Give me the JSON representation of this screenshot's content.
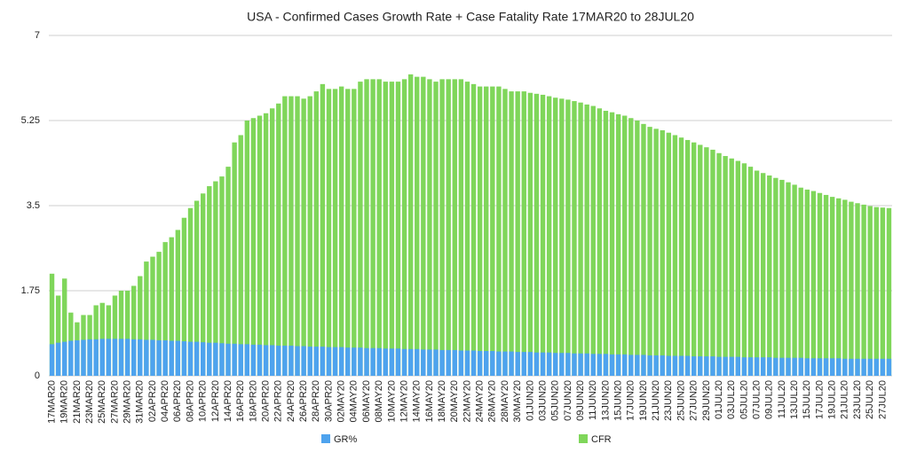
{
  "chart_data": {
    "type": "bar",
    "title": "USA - Confirmed Cases Growth Rate + Case Fatality Rate 17MAR20 to 28JUL20",
    "categories": [
      "17MAR20",
      null,
      "19MAR20",
      null,
      "21MAR20",
      null,
      "23MAR20",
      null,
      "25MAR20",
      null,
      "27MAR20",
      null,
      "29MAR20",
      null,
      "31MAR20",
      null,
      "02APR20",
      null,
      "04APR20",
      null,
      "06APR20",
      null,
      "08APR20",
      null,
      "10APR20",
      null,
      "12APR20",
      null,
      "14APR20",
      null,
      "16APR20",
      null,
      "18APR20",
      null,
      "20APR20",
      null,
      "22APR20",
      null,
      "24APR20",
      null,
      "26APR20",
      null,
      "28APR20",
      null,
      "30APR20",
      null,
      "02MAY20",
      null,
      "04MAY20",
      null,
      "06MAY20",
      null,
      "08MAY20",
      null,
      "10MAY20",
      null,
      "12MAY20",
      null,
      "14MAY20",
      null,
      "16MAY20",
      null,
      "18MAY20",
      null,
      "20MAY20",
      null,
      "22MAY20",
      null,
      "24MAY20",
      null,
      "26MAY20",
      null,
      "28MAY20",
      null,
      "30MAY20",
      null,
      "01JUN20",
      null,
      "03JUN20",
      null,
      "05JUN20",
      null,
      "07JUN20",
      null,
      "09JUN20",
      null,
      "11JUN20",
      null,
      "13JUN20",
      null,
      "15JUN20",
      null,
      "17JUN20",
      null,
      "19JUN20",
      null,
      "21JUN20",
      null,
      "23JUN20",
      null,
      "25JUN20",
      null,
      "27JUN20",
      null,
      "29JUN20",
      null,
      "01JUL20",
      null,
      "03JUL20",
      null,
      "05JUL20",
      null,
      "07JUL20",
      null,
      "09JUL20",
      null,
      "11JUL20",
      null,
      "13JUL20",
      null,
      "15JUL20",
      null,
      "17JUL20",
      null,
      "19JUL20",
      null,
      "21JUL20",
      null,
      "23JUL20",
      null,
      "25JUL20",
      null,
      "27JUL20",
      null
    ],
    "series": [
      {
        "name": "CFR",
        "color": "#7fd65a",
        "values": [
          2.1,
          1.65,
          2.0,
          1.3,
          1.1,
          1.25,
          1.25,
          1.45,
          1.5,
          1.45,
          1.65,
          1.75,
          1.75,
          1.85,
          2.05,
          2.35,
          2.45,
          2.55,
          2.75,
          2.85,
          3.0,
          3.25,
          3.45,
          3.6,
          3.75,
          3.9,
          4.0,
          4.1,
          4.3,
          4.8,
          4.95,
          5.25,
          5.3,
          5.35,
          5.4,
          5.5,
          5.6,
          5.75,
          5.75,
          5.75,
          5.7,
          5.75,
          5.85,
          6.0,
          5.9,
          5.9,
          5.95,
          5.9,
          5.9,
          6.05,
          6.1,
          6.1,
          6.1,
          6.05,
          6.05,
          6.05,
          6.1,
          6.2,
          6.15,
          6.15,
          6.1,
          6.05,
          6.1,
          6.1,
          6.1,
          6.1,
          6.05,
          6.0,
          5.95,
          5.95,
          5.95,
          5.95,
          5.9,
          5.85,
          5.85,
          5.85,
          5.82,
          5.8,
          5.78,
          5.75,
          5.72,
          5.7,
          5.68,
          5.65,
          5.62,
          5.58,
          5.55,
          5.5,
          5.45,
          5.42,
          5.38,
          5.35,
          5.3,
          5.25,
          5.18,
          5.12,
          5.08,
          5.05,
          5.0,
          4.95,
          4.9,
          4.85,
          4.8,
          4.75,
          4.7,
          4.65,
          4.58,
          4.52,
          4.47,
          4.42,
          4.37,
          4.3,
          4.22,
          4.17,
          4.12,
          4.07,
          4.03,
          3.98,
          3.93,
          3.87,
          3.83,
          3.8,
          3.76,
          3.72,
          3.68,
          3.65,
          3.62,
          3.58,
          3.55,
          3.52,
          3.49,
          3.47,
          3.46,
          3.45
        ]
      },
      {
        "name": "GR%",
        "color": "#4ea3ee",
        "values": [
          0.65,
          0.68,
          0.7,
          0.72,
          0.73,
          0.74,
          0.75,
          0.75,
          0.76,
          0.76,
          0.76,
          0.76,
          0.76,
          0.75,
          0.75,
          0.74,
          0.74,
          0.73,
          0.73,
          0.72,
          0.72,
          0.71,
          0.7,
          0.7,
          0.69,
          0.68,
          0.68,
          0.67,
          0.66,
          0.66,
          0.65,
          0.65,
          0.64,
          0.64,
          0.63,
          0.63,
          0.62,
          0.62,
          0.62,
          0.61,
          0.61,
          0.6,
          0.6,
          0.6,
          0.59,
          0.59,
          0.59,
          0.58,
          0.58,
          0.58,
          0.57,
          0.57,
          0.57,
          0.56,
          0.56,
          0.56,
          0.55,
          0.55,
          0.55,
          0.54,
          0.54,
          0.54,
          0.53,
          0.53,
          0.53,
          0.52,
          0.52,
          0.52,
          0.51,
          0.51,
          0.51,
          0.5,
          0.5,
          0.5,
          0.49,
          0.49,
          0.49,
          0.48,
          0.48,
          0.48,
          0.47,
          0.47,
          0.47,
          0.46,
          0.46,
          0.46,
          0.45,
          0.45,
          0.45,
          0.44,
          0.44,
          0.44,
          0.43,
          0.43,
          0.43,
          0.42,
          0.42,
          0.42,
          0.41,
          0.41,
          0.41,
          0.41,
          0.4,
          0.4,
          0.4,
          0.4,
          0.39,
          0.39,
          0.39,
          0.39,
          0.38,
          0.38,
          0.38,
          0.38,
          0.38,
          0.37,
          0.37,
          0.37,
          0.37,
          0.37,
          0.36,
          0.36,
          0.36,
          0.36,
          0.36,
          0.36,
          0.35,
          0.35,
          0.35,
          0.35,
          0.35,
          0.35,
          0.35,
          0.35
        ]
      }
    ],
    "ylim": [
      0,
      7
    ],
    "yticks": [
      0,
      1.75,
      3.5,
      5.25,
      7
    ],
    "grid": true,
    "legend": "bottom"
  }
}
